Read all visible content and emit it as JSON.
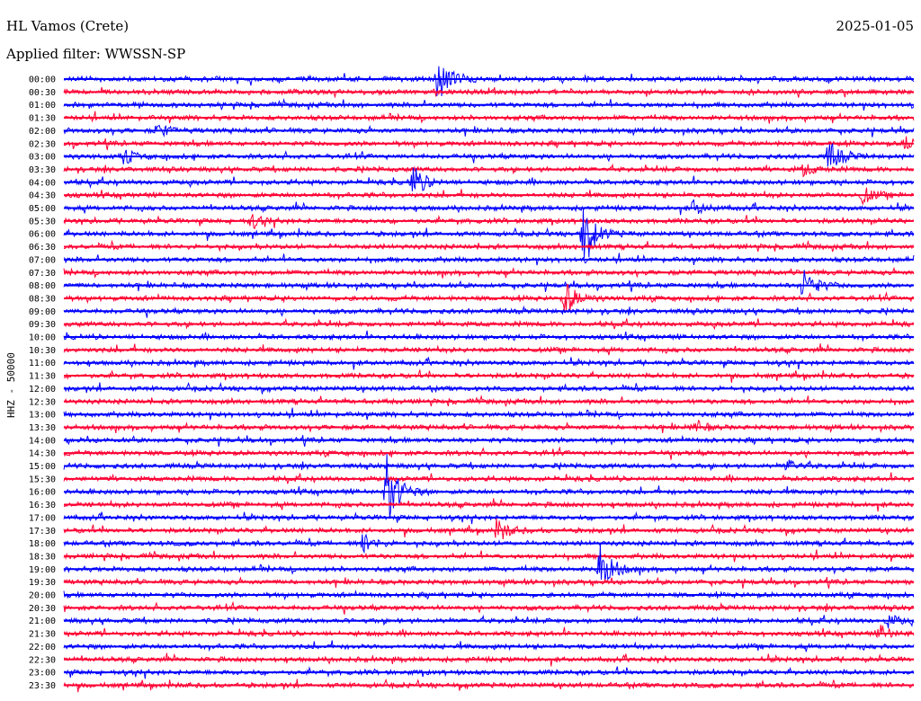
{
  "header": {
    "station": "HL Vamos (Crete)",
    "date": "2025-01-05",
    "filter": "Applied filter: WWSSN-SP"
  },
  "chart_data": {
    "type": "line",
    "title": "HL Vamos (Crete)",
    "ylabel": "HHZ - 50000",
    "traces": [
      "00:00",
      "00:30",
      "01:00",
      "01:30",
      "02:00",
      "02:30",
      "03:00",
      "03:30",
      "04:00",
      "04:30",
      "05:00",
      "05:30",
      "06:00",
      "06:30",
      "07:00",
      "07:30",
      "08:00",
      "08:30",
      "09:00",
      "09:30",
      "10:00",
      "10:30",
      "11:00",
      "11:30",
      "12:00",
      "12:30",
      "13:00",
      "13:30",
      "14:00",
      "14:30",
      "15:00",
      "15:30",
      "16:00",
      "16:30",
      "17:00",
      "17:30",
      "18:00",
      "18:30",
      "19:00",
      "19:30",
      "20:00",
      "20:30",
      "21:00",
      "21:30",
      "22:00",
      "22:30",
      "23:00",
      "23:30"
    ],
    "colors": [
      "#0000ff",
      "#ff0033"
    ],
    "events": [
      {
        "trace": "00:00",
        "t": 0.44,
        "amp": 2.2
      },
      {
        "trace": "02:00",
        "t": 0.11,
        "amp": 0.6
      },
      {
        "trace": "02:30",
        "t": 0.99,
        "amp": 0.7
      },
      {
        "trace": "03:00",
        "t": 0.9,
        "amp": 1.4
      },
      {
        "trace": "03:00",
        "t": 0.07,
        "amp": 0.6
      },
      {
        "trace": "03:30",
        "t": 0.87,
        "amp": 0.5
      },
      {
        "trace": "04:00",
        "t": 0.41,
        "amp": 1.5
      },
      {
        "trace": "04:30",
        "t": 0.94,
        "amp": 0.7
      },
      {
        "trace": "05:00",
        "t": 0.74,
        "amp": 0.6
      },
      {
        "trace": "05:30",
        "t": 0.22,
        "amp": 0.6
      },
      {
        "trace": "06:00",
        "t": 0.61,
        "amp": 3.0
      },
      {
        "trace": "08:00",
        "t": 0.87,
        "amp": 1.6
      },
      {
        "trace": "08:30",
        "t": 0.59,
        "amp": 1.5
      },
      {
        "trace": "13:30",
        "t": 0.74,
        "amp": 0.6
      },
      {
        "trace": "15:00",
        "t": 0.85,
        "amp": 0.6
      },
      {
        "trace": "16:00",
        "t": 0.38,
        "amp": 3.2
      },
      {
        "trace": "17:30",
        "t": 0.51,
        "amp": 1.0
      },
      {
        "trace": "18:00",
        "t": 0.35,
        "amp": 0.9
      },
      {
        "trace": "19:00",
        "t": 0.63,
        "amp": 2.4
      },
      {
        "trace": "21:00",
        "t": 0.97,
        "amp": 0.5
      },
      {
        "trace": "21:30",
        "t": 0.96,
        "amp": 0.7
      }
    ]
  }
}
